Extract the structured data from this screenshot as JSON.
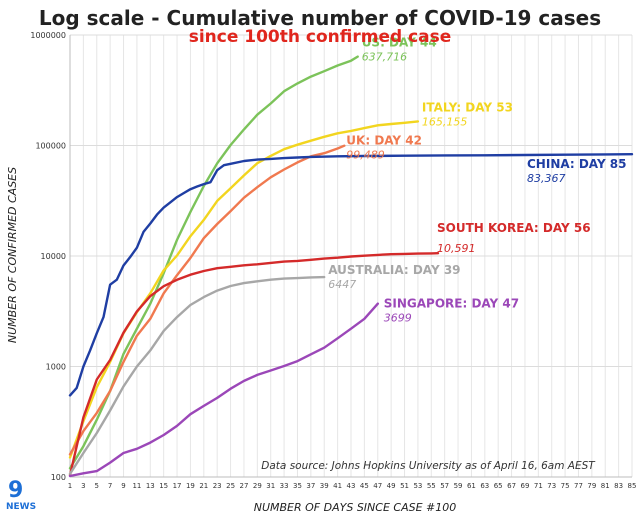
{
  "chart_data": {
    "type": "line",
    "title": "Log scale - Cumulative number of COVID-19 cases",
    "subtitle": "since 100th confirmed case",
    "xlabel": "NUMBER OF DAYS SINCE CASE #100",
    "ylabel": "NUMBER OF CONFIRMED CASES",
    "yscale": "log",
    "xlim": [
      1,
      85
    ],
    "ylim": [
      100,
      1000000
    ],
    "x_ticks": [
      1,
      3,
      5,
      7,
      9,
      11,
      13,
      15,
      17,
      19,
      21,
      23,
      25,
      27,
      29,
      31,
      33,
      35,
      37,
      39,
      41,
      43,
      45,
      47,
      49,
      51,
      53,
      55,
      57,
      59,
      61,
      63,
      65,
      67,
      69,
      71,
      73,
      75,
      77,
      79,
      81,
      83,
      85
    ],
    "y_ticks": [
      100,
      1000,
      10000,
      100000,
      1000000
    ],
    "y_tick_labels": [
      "100",
      "1000",
      "10000",
      "100000",
      "1000000"
    ],
    "grid": true,
    "source_note": "Data source: Johns Hopkins University as of April 16, 6am AEST",
    "series": [
      {
        "name": "US",
        "label": "US: DAY 44",
        "final_label": "637,716",
        "color": "#7cc35a",
        "points": [
          [
            1,
            120
          ],
          [
            3,
            190
          ],
          [
            5,
            330
          ],
          [
            7,
            600
          ],
          [
            9,
            1300
          ],
          [
            11,
            2200
          ],
          [
            13,
            3700
          ],
          [
            15,
            7000
          ],
          [
            17,
            14000
          ],
          [
            19,
            25000
          ],
          [
            21,
            43000
          ],
          [
            23,
            69000
          ],
          [
            25,
            101000
          ],
          [
            27,
            140000
          ],
          [
            29,
            190000
          ],
          [
            31,
            240000
          ],
          [
            33,
            310000
          ],
          [
            35,
            365000
          ],
          [
            37,
            420000
          ],
          [
            39,
            470000
          ],
          [
            41,
            530000
          ],
          [
            43,
            585000
          ],
          [
            44,
            637716
          ]
        ]
      },
      {
        "name": "ITALY",
        "label": "ITALY: DAY 53",
        "final_label": "165,155",
        "color": "#f2d51f",
        "points": [
          [
            1,
            150
          ],
          [
            3,
            320
          ],
          [
            5,
            650
          ],
          [
            7,
            1100
          ],
          [
            9,
            2000
          ],
          [
            11,
            3100
          ],
          [
            13,
            4600
          ],
          [
            15,
            7400
          ],
          [
            17,
            10100
          ],
          [
            19,
            15100
          ],
          [
            21,
            21200
          ],
          [
            23,
            31500
          ],
          [
            25,
            41000
          ],
          [
            27,
            53600
          ],
          [
            29,
            69200
          ],
          [
            31,
            80500
          ],
          [
            33,
            92500
          ],
          [
            35,
            101700
          ],
          [
            37,
            110500
          ],
          [
            39,
            119800
          ],
          [
            41,
            128900
          ],
          [
            43,
            135600
          ],
          [
            45,
            143600
          ],
          [
            47,
            152300
          ],
          [
            49,
            156400
          ],
          [
            51,
            160500
          ],
          [
            53,
            165155
          ]
        ]
      },
      {
        "name": "UK",
        "label": "UK: DAY 42",
        "final_label": "99,489",
        "color": "#f0794f",
        "points": [
          [
            1,
            160
          ],
          [
            3,
            260
          ],
          [
            5,
            380
          ],
          [
            7,
            600
          ],
          [
            9,
            1100
          ],
          [
            11,
            1900
          ],
          [
            13,
            2700
          ],
          [
            15,
            4600
          ],
          [
            17,
            6700
          ],
          [
            19,
            9600
          ],
          [
            21,
            14500
          ],
          [
            23,
            19500
          ],
          [
            25,
            25500
          ],
          [
            27,
            33700
          ],
          [
            29,
            41900
          ],
          [
            31,
            51600
          ],
          [
            33,
            60700
          ],
          [
            35,
            70300
          ],
          [
            37,
            79900
          ],
          [
            39,
            85200
          ],
          [
            41,
            93900
          ],
          [
            42,
            99489
          ]
        ]
      },
      {
        "name": "CHINA",
        "label": "CHINA: DAY 85",
        "final_label": "83,367",
        "color": "#1f3ea3",
        "points": [
          [
            1,
            548
          ],
          [
            2,
            640
          ],
          [
            3,
            1000
          ],
          [
            4,
            1400
          ],
          [
            5,
            2000
          ],
          [
            6,
            2800
          ],
          [
            7,
            5500
          ],
          [
            8,
            6100
          ],
          [
            9,
            8200
          ],
          [
            10,
            9800
          ],
          [
            11,
            11900
          ],
          [
            12,
            16600
          ],
          [
            13,
            19700
          ],
          [
            14,
            23700
          ],
          [
            15,
            27400
          ],
          [
            16,
            30600
          ],
          [
            17,
            34100
          ],
          [
            18,
            37100
          ],
          [
            19,
            40200
          ],
          [
            20,
            42600
          ],
          [
            21,
            44700
          ],
          [
            22,
            46500
          ],
          [
            23,
            59800
          ],
          [
            24,
            66300
          ],
          [
            25,
            68300
          ],
          [
            27,
            72400
          ],
          [
            29,
            74500
          ],
          [
            31,
            75700
          ],
          [
            33,
            76900
          ],
          [
            35,
            77900
          ],
          [
            37,
            78800
          ],
          [
            41,
            79800
          ],
          [
            45,
            80400
          ],
          [
            51,
            80900
          ],
          [
            57,
            81300
          ],
          [
            63,
            81600
          ],
          [
            69,
            82000
          ],
          [
            75,
            82600
          ],
          [
            81,
            83000
          ],
          [
            85,
            83367
          ]
        ]
      },
      {
        "name": "SOUTH KOREA",
        "label": "SOUTH KOREA: DAY 56",
        "final_label": "10,591",
        "color": "#d42a2a",
        "points": [
          [
            1,
            104
          ],
          [
            3,
            346
          ],
          [
            5,
            763
          ],
          [
            7,
            1146
          ],
          [
            9,
            2022
          ],
          [
            11,
            3150
          ],
          [
            13,
            4335
          ],
          [
            15,
            5328
          ],
          [
            17,
            6088
          ],
          [
            19,
            6767
          ],
          [
            21,
            7313
          ],
          [
            23,
            7755
          ],
          [
            25,
            7979
          ],
          [
            27,
            8236
          ],
          [
            29,
            8413
          ],
          [
            31,
            8652
          ],
          [
            33,
            8897
          ],
          [
            35,
            9037
          ],
          [
            37,
            9241
          ],
          [
            39,
            9478
          ],
          [
            41,
            9661
          ],
          [
            43,
            9887
          ],
          [
            45,
            10062
          ],
          [
            47,
            10237
          ],
          [
            49,
            10384
          ],
          [
            51,
            10450
          ],
          [
            53,
            10512
          ],
          [
            55,
            10564
          ],
          [
            56,
            10591
          ]
        ]
      },
      {
        "name": "AUSTRALIA",
        "label": "AUSTRALIA: DAY 39",
        "final_label": "6447",
        "color": "#a7a7a7",
        "points": [
          [
            1,
            107
          ],
          [
            3,
            165
          ],
          [
            5,
            250
          ],
          [
            7,
            400
          ],
          [
            9,
            660
          ],
          [
            11,
            1000
          ],
          [
            13,
            1400
          ],
          [
            15,
            2100
          ],
          [
            17,
            2800
          ],
          [
            19,
            3600
          ],
          [
            21,
            4250
          ],
          [
            23,
            4860
          ],
          [
            25,
            5350
          ],
          [
            27,
            5680
          ],
          [
            29,
            5900
          ],
          [
            31,
            6100
          ],
          [
            33,
            6240
          ],
          [
            35,
            6310
          ],
          [
            37,
            6400
          ],
          [
            39,
            6447
          ]
        ]
      },
      {
        "name": "SINGAPORE",
        "label": "SINGAPORE: DAY 47",
        "final_label": "3699",
        "color": "#9b47b8",
        "points": [
          [
            1,
            102
          ],
          [
            3,
            108
          ],
          [
            5,
            113
          ],
          [
            7,
            135
          ],
          [
            9,
            165
          ],
          [
            11,
            180
          ],
          [
            13,
            205
          ],
          [
            15,
            240
          ],
          [
            17,
            290
          ],
          [
            19,
            370
          ],
          [
            21,
            440
          ],
          [
            23,
            520
          ],
          [
            25,
            630
          ],
          [
            27,
            740
          ],
          [
            29,
            840
          ],
          [
            31,
            920
          ],
          [
            33,
            1010
          ],
          [
            35,
            1120
          ],
          [
            37,
            1290
          ],
          [
            39,
            1480
          ],
          [
            41,
            1800
          ],
          [
            43,
            2200
          ],
          [
            45,
            2700
          ],
          [
            47,
            3699
          ]
        ]
      }
    ]
  },
  "branding": {
    "logo_number": "9",
    "logo_text": "NEWS"
  }
}
